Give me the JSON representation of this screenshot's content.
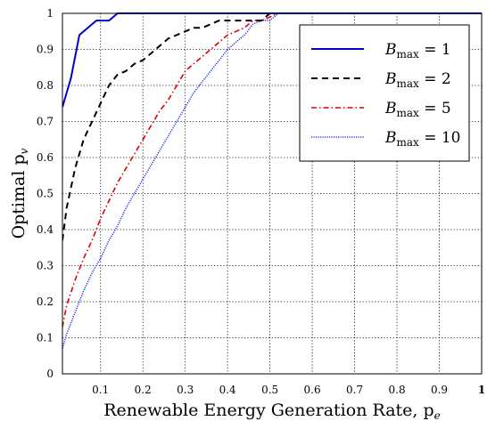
{
  "chart_data": {
    "type": "line",
    "xlabel": "Renewable Energy Generation Rate, p",
    "xlabel_sub": "e",
    "ylabel": "Optimal p",
    "ylabel_sub": "v",
    "xlim": [
      0.01,
      1
    ],
    "ylim": [
      0,
      1
    ],
    "x_ticks": [
      0.1,
      0.2,
      0.3,
      0.4,
      0.5,
      0.6,
      0.7,
      0.8,
      0.9,
      1
    ],
    "x_tick_labels": [
      "0.1",
      "0.2",
      "0.3",
      "0.4",
      "0.5",
      "0.6",
      "0.7",
      "0.8",
      "0.9",
      "1"
    ],
    "y_ticks": [
      0,
      0.1,
      0.2,
      0.3,
      0.4,
      0.5,
      0.6,
      0.7,
      0.8,
      0.9,
      1
    ],
    "y_tick_labels": [
      "0",
      "0.1",
      "0.2",
      "0.3",
      "0.4",
      "0.5",
      "0.6",
      "0.7",
      "0.8",
      "0.9",
      "1"
    ],
    "grid": true,
    "legend_position": "top-right",
    "series": [
      {
        "name": "B_max = 1",
        "label_main": "B",
        "label_sub": "max",
        "label_rest": " = 1",
        "color": "#0000cc",
        "style": "solid",
        "x": [
          0.01,
          0.03,
          0.05,
          0.07,
          0.09,
          0.1,
          0.12,
          0.14,
          0.16,
          0.2,
          0.3,
          0.4,
          0.5,
          0.6,
          0.8,
          1.0
        ],
        "y": [
          0.74,
          0.82,
          0.94,
          0.96,
          0.98,
          0.98,
          0.98,
          1.0,
          1.0,
          1.0,
          1.0,
          1.0,
          1.0,
          1.0,
          1.0,
          1.0
        ]
      },
      {
        "name": "B_max = 2",
        "label_main": "B",
        "label_sub": "max",
        "label_rest": " = 2",
        "color": "#000000",
        "style": "dashed",
        "x": [
          0.01,
          0.02,
          0.04,
          0.06,
          0.08,
          0.1,
          0.12,
          0.14,
          0.16,
          0.18,
          0.2,
          0.22,
          0.24,
          0.26,
          0.28,
          0.3,
          0.32,
          0.34,
          0.36,
          0.38,
          0.4,
          0.42,
          0.44,
          0.46,
          0.48,
          0.5,
          0.52,
          0.6,
          0.8,
          1.0
        ],
        "y": [
          0.37,
          0.46,
          0.57,
          0.65,
          0.7,
          0.75,
          0.8,
          0.83,
          0.84,
          0.86,
          0.87,
          0.89,
          0.91,
          0.93,
          0.94,
          0.95,
          0.96,
          0.96,
          0.97,
          0.98,
          0.98,
          0.98,
          0.98,
          0.98,
          0.98,
          1.0,
          1.0,
          1.0,
          1.0,
          1.0
        ]
      },
      {
        "name": "B_max = 5",
        "label_main": "B",
        "label_sub": "max",
        "label_rest": " = 5",
        "color": "#e00000",
        "style": "dashdot",
        "x": [
          0.01,
          0.02,
          0.04,
          0.06,
          0.08,
          0.1,
          0.12,
          0.14,
          0.16,
          0.18,
          0.2,
          0.22,
          0.24,
          0.26,
          0.28,
          0.3,
          0.32,
          0.34,
          0.36,
          0.38,
          0.4,
          0.42,
          0.44,
          0.46,
          0.48,
          0.5,
          0.52,
          0.54,
          0.6,
          0.8,
          1.0
        ],
        "y": [
          0.13,
          0.19,
          0.26,
          0.32,
          0.37,
          0.43,
          0.48,
          0.53,
          0.57,
          0.61,
          0.65,
          0.69,
          0.73,
          0.76,
          0.8,
          0.84,
          0.86,
          0.88,
          0.9,
          0.92,
          0.94,
          0.95,
          0.96,
          0.98,
          0.98,
          0.99,
          1.0,
          1.0,
          1.0,
          1.0,
          1.0
        ]
      },
      {
        "name": "B_max = 10",
        "label_main": "B",
        "label_sub": "max",
        "label_rest": " = 10",
        "color": "#2a3cf0",
        "style": "dotted",
        "x": [
          0.01,
          0.02,
          0.04,
          0.06,
          0.08,
          0.1,
          0.12,
          0.14,
          0.16,
          0.18,
          0.2,
          0.22,
          0.24,
          0.26,
          0.28,
          0.3,
          0.32,
          0.34,
          0.36,
          0.38,
          0.4,
          0.42,
          0.44,
          0.46,
          0.48,
          0.5,
          0.52,
          0.54,
          0.6,
          0.8,
          1.0
        ],
        "y": [
          0.07,
          0.11,
          0.17,
          0.23,
          0.28,
          0.32,
          0.37,
          0.41,
          0.46,
          0.5,
          0.54,
          0.58,
          0.62,
          0.66,
          0.7,
          0.74,
          0.78,
          0.81,
          0.84,
          0.87,
          0.9,
          0.92,
          0.94,
          0.97,
          0.98,
          0.98,
          1.0,
          1.0,
          1.0,
          1.0,
          1.0
        ]
      }
    ]
  }
}
